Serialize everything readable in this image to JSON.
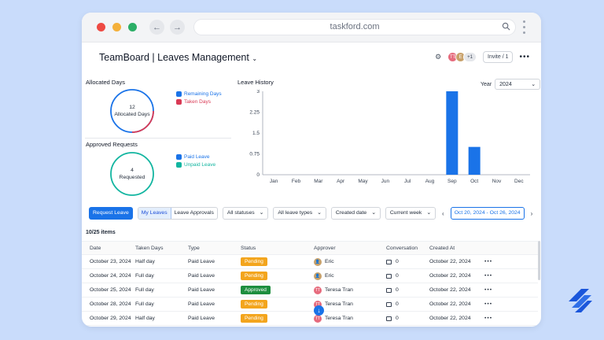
{
  "browser": {
    "url": "taskford.com"
  },
  "header": {
    "title": "TeamBoard | Leaves Management",
    "invite_label": "Invite / 1",
    "avatar_extra": "+1"
  },
  "allocated": {
    "title": "Allocated Days",
    "center_number": "12",
    "center_label": "Allocated Days",
    "legend": [
      {
        "label": "Remaining Days",
        "color": "#1a73e8"
      },
      {
        "label": "Taken Days",
        "color": "#d93a55"
      }
    ]
  },
  "approved": {
    "title": "Approved Requests",
    "center_number": "4",
    "center_label": "Requested",
    "legend": [
      {
        "label": "Paid Leave",
        "color": "#1a73e8"
      },
      {
        "label": "Unpaid Leave",
        "color": "#12b5a0"
      }
    ]
  },
  "history": {
    "title": "Leave History",
    "year_label": "Year",
    "year_value": "2024"
  },
  "chart_data": {
    "type": "bar",
    "title": "Leave History",
    "categories": [
      "Jan",
      "Feb",
      "Mar",
      "Apr",
      "May",
      "Jun",
      "Jul",
      "Aug",
      "Sep",
      "Oct",
      "Nov",
      "Dec"
    ],
    "values": [
      0,
      0,
      0,
      0,
      0,
      0,
      0,
      0,
      3,
      1,
      0,
      0
    ],
    "yticks": [
      "0",
      "0.75",
      "1.5",
      "2.25",
      "3"
    ],
    "ylim": [
      0,
      3
    ],
    "bar_color": "#1a73e8"
  },
  "toolbar": {
    "request_leave": "Request Leave",
    "my_leaves": "My Leaves",
    "leave_approvals": "Leave Approvals",
    "status_filter": "All statuses",
    "type_filter": "All leave types",
    "sort": "Created date",
    "period": "Current week",
    "date_range": "Oct 20, 2024 - Oct 26, 2024",
    "prev": "‹",
    "next": "›"
  },
  "items_count": "10/25 items",
  "table": {
    "headers": [
      "Date",
      "Taken Days",
      "Type",
      "Status",
      "Approver",
      "Conversation",
      "Created At"
    ],
    "rows": [
      {
        "date": "October 23, 2024",
        "taken": "Half day",
        "type": "Paid Leave",
        "status": "Pending",
        "approver": "Eric",
        "conv": "0",
        "created": "October 22, 2024"
      },
      {
        "date": "October 24, 2024",
        "taken": "Full day",
        "type": "Paid Leave",
        "status": "Pending",
        "approver": "Eric",
        "conv": "0",
        "created": "October 22, 2024"
      },
      {
        "date": "October 25, 2024",
        "taken": "Full day",
        "type": "Paid Leave",
        "status": "Approved",
        "approver": "Teresa Tran",
        "conv": "0",
        "created": "October 22, 2024"
      },
      {
        "date": "October 28, 2024",
        "taken": "Full day",
        "type": "Paid Leave",
        "status": "Pending",
        "approver": "Teresa Tran",
        "conv": "0",
        "created": "October 22, 2024"
      },
      {
        "date": "October 29, 2024",
        "taken": "Half day",
        "type": "Paid Leave",
        "status": "Pending",
        "approver": "Teresa Tran",
        "conv": "0",
        "created": "October 22, 2024"
      }
    ]
  }
}
